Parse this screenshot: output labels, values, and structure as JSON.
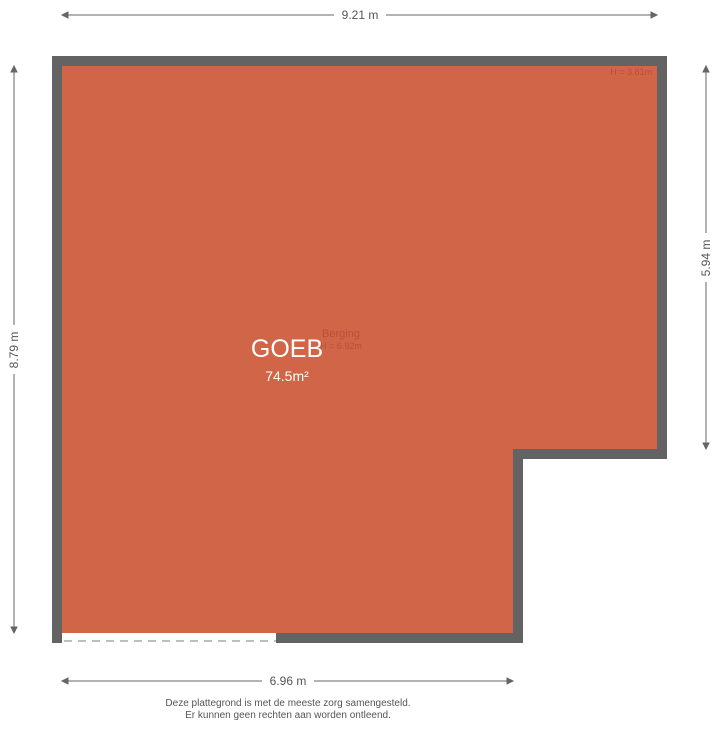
{
  "dimensions": {
    "top": "9.21 m",
    "left": "8.79 m",
    "right": "5.94 m",
    "bottom": "6.96 m"
  },
  "room": {
    "name": "GOEB",
    "area": "74.5m²",
    "label": "Berging",
    "height_center": "H = 6.92m",
    "height_corner": "H = 3.81m"
  },
  "colors": {
    "floor": "#d06548",
    "wall": "#636363"
  },
  "footer": {
    "line1": "Deze plattegrond is met de meeste zorg samengesteld.",
    "line2": "Er kunnen geen rechten aan worden ontleend."
  }
}
